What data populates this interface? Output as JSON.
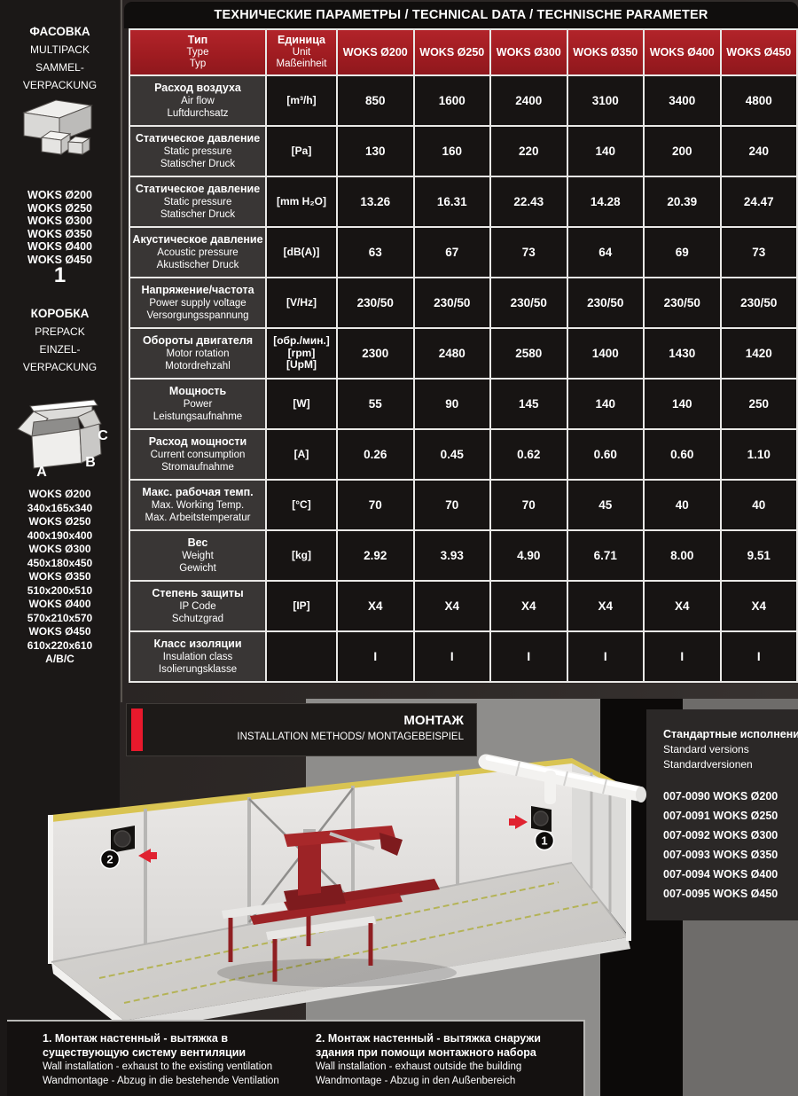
{
  "page": {
    "title": "ТЕХНИЧЕСКИЕ ПАРАМЕТРЫ / TECHNICAL DATA / TECHNISCHE PARAMETER"
  },
  "sidebar": {
    "multipack": {
      "title_lines": [
        "ФАСОВКА",
        "MULTIPACK",
        "SAMMEL-",
        "VERPACKUNG"
      ],
      "icon": "multipack-boxes-icon",
      "models": [
        "WOKS Ø200",
        "WOKS Ø250",
        "WOKS Ø300",
        "WOKS Ø350",
        "WOKS Ø400",
        "WOKS Ø450"
      ],
      "badge": "1"
    },
    "prepack": {
      "title_lines": [
        "КОРОБКА",
        "PREPACK",
        "EINZEL-",
        "VERPACKUNG"
      ],
      "icon": "open-box-icon",
      "box_labels": [
        "A",
        "B",
        "C"
      ],
      "lines": [
        "WOKS Ø200",
        "340x165x340",
        "WOKS Ø250",
        "400x190x400",
        "WOKS Ø300",
        "450x180x450",
        "WOKS Ø350",
        "510x200x510",
        "WOKS Ø400",
        "570x210x570",
        "WOKS Ø450",
        "610x220x610",
        "A/B/C"
      ]
    }
  },
  "table": {
    "type_header": [
      "Тип",
      "Type",
      "Typ"
    ],
    "unit_header": [
      "Единица",
      "Unit",
      "Maßeinheit"
    ],
    "model_columns": [
      "WOKS Ø200",
      "WOKS Ø250",
      "WOKS Ø300",
      "WOKS Ø350",
      "WOKS Ø400",
      "WOKS Ø450"
    ],
    "rows": [
      {
        "label": [
          "Расход воздуха",
          "Air flow",
          "Luftdurchsatz"
        ],
        "unit": [
          "[m³/h]"
        ],
        "values": [
          "850",
          "1600",
          "2400",
          "3100",
          "3400",
          "4800"
        ]
      },
      {
        "label": [
          "Статическое давление",
          "Static pressure",
          "Statischer Druck"
        ],
        "unit": [
          "[Pa]"
        ],
        "values": [
          "130",
          "160",
          "220",
          "140",
          "200",
          "240"
        ]
      },
      {
        "label": [
          "Статическое давление",
          "Static pressure",
          "Statischer Druck"
        ],
        "unit": [
          "[mm H₂O]"
        ],
        "values": [
          "13.26",
          "16.31",
          "22.43",
          "14.28",
          "20.39",
          "24.47"
        ]
      },
      {
        "label": [
          "Акустическое давление",
          "Acoustic pressure",
          "Akustischer Druck"
        ],
        "unit": [
          "[dB(A)]"
        ],
        "values": [
          "63",
          "67",
          "73",
          "64",
          "69",
          "73"
        ]
      },
      {
        "label": [
          "Напряжение/частота",
          "Power supply voltage",
          "Versorgungsspannung"
        ],
        "unit": [
          "[V/Hz]"
        ],
        "values": [
          "230/50",
          "230/50",
          "230/50",
          "230/50",
          "230/50",
          "230/50"
        ]
      },
      {
        "label": [
          "Обороты двигателя",
          "Motor rotation",
          "Motordrehzahl"
        ],
        "unit": [
          "[обр./мин.]",
          "[rpm]",
          "[UpM]"
        ],
        "values": [
          "2300",
          "2480",
          "2580",
          "1400",
          "1430",
          "1420"
        ]
      },
      {
        "label": [
          "Мощность",
          "Power",
          "Leistungsaufnahme"
        ],
        "unit": [
          "[W]"
        ],
        "values": [
          "55",
          "90",
          "145",
          "140",
          "140",
          "250"
        ]
      },
      {
        "label": [
          "Расход мощности",
          "Current consumption",
          "Stromaufnahme"
        ],
        "unit": [
          "[A]"
        ],
        "values": [
          "0.26",
          "0.45",
          "0.62",
          "0.60",
          "0.60",
          "1.10"
        ]
      },
      {
        "label": [
          "Макс. рабочая темп.",
          "Max. Working Temp.",
          "Max. Arbeitstemperatur"
        ],
        "unit": [
          "[°C]"
        ],
        "values": [
          "70",
          "70",
          "70",
          "45",
          "40",
          "40"
        ]
      },
      {
        "label": [
          "Вес",
          "Weight",
          "Gewicht"
        ],
        "unit": [
          "[kg]"
        ],
        "values": [
          "2.92",
          "3.93",
          "4.90",
          "6.71",
          "8.00",
          "9.51"
        ]
      },
      {
        "label": [
          "Степень защиты",
          "IP Code",
          "Schutzgrad"
        ],
        "unit": [
          "[IP]"
        ],
        "values": [
          "X4",
          "X4",
          "X4",
          "X4",
          "X4",
          "X4"
        ]
      },
      {
        "label": [
          "Класс изоляции",
          "Insulation class",
          "Isolierungsklasse"
        ],
        "unit": [],
        "values": [
          "I",
          "I",
          "I",
          "I",
          "I",
          "I"
        ]
      }
    ]
  },
  "montage": {
    "title": "МОНТАЖ",
    "subtitle": "INSTALLATION METHODS/ MONTAGEBEISPIEL"
  },
  "standards": {
    "title": "Стандартные исполнения",
    "subtitle_lines": [
      "Standard versions",
      "Standardversionen"
    ],
    "items": [
      "007-0090 WOKS Ø200",
      "007-0091 WOKS Ø250",
      "007-0092 WOKS Ø300",
      "007-0093 WOKS Ø350",
      "007-0094 WOKS Ø400",
      "007-0095 WOKS Ø450"
    ]
  },
  "illustration": {
    "marker_1": "1",
    "marker_2": "2"
  },
  "captions": [
    {
      "ru": "1. Монтаж настенный - вытяжка в существующую систему вентиляции",
      "en": "Wall installation - exhaust to the existing ventilation",
      "de": "Wandmontage - Abzug in die bestehende Ventilation"
    },
    {
      "ru": "2. Монтаж настенный - вытяжка снаружи здания при помощи монтажного набора",
      "en": "Wall installation - exhaust outside the building",
      "de": "Wandmontage - Abzug in den Außenbereich"
    }
  ],
  "colors": {
    "header_red": "#A91E23",
    "accent_red": "#E8192C"
  }
}
